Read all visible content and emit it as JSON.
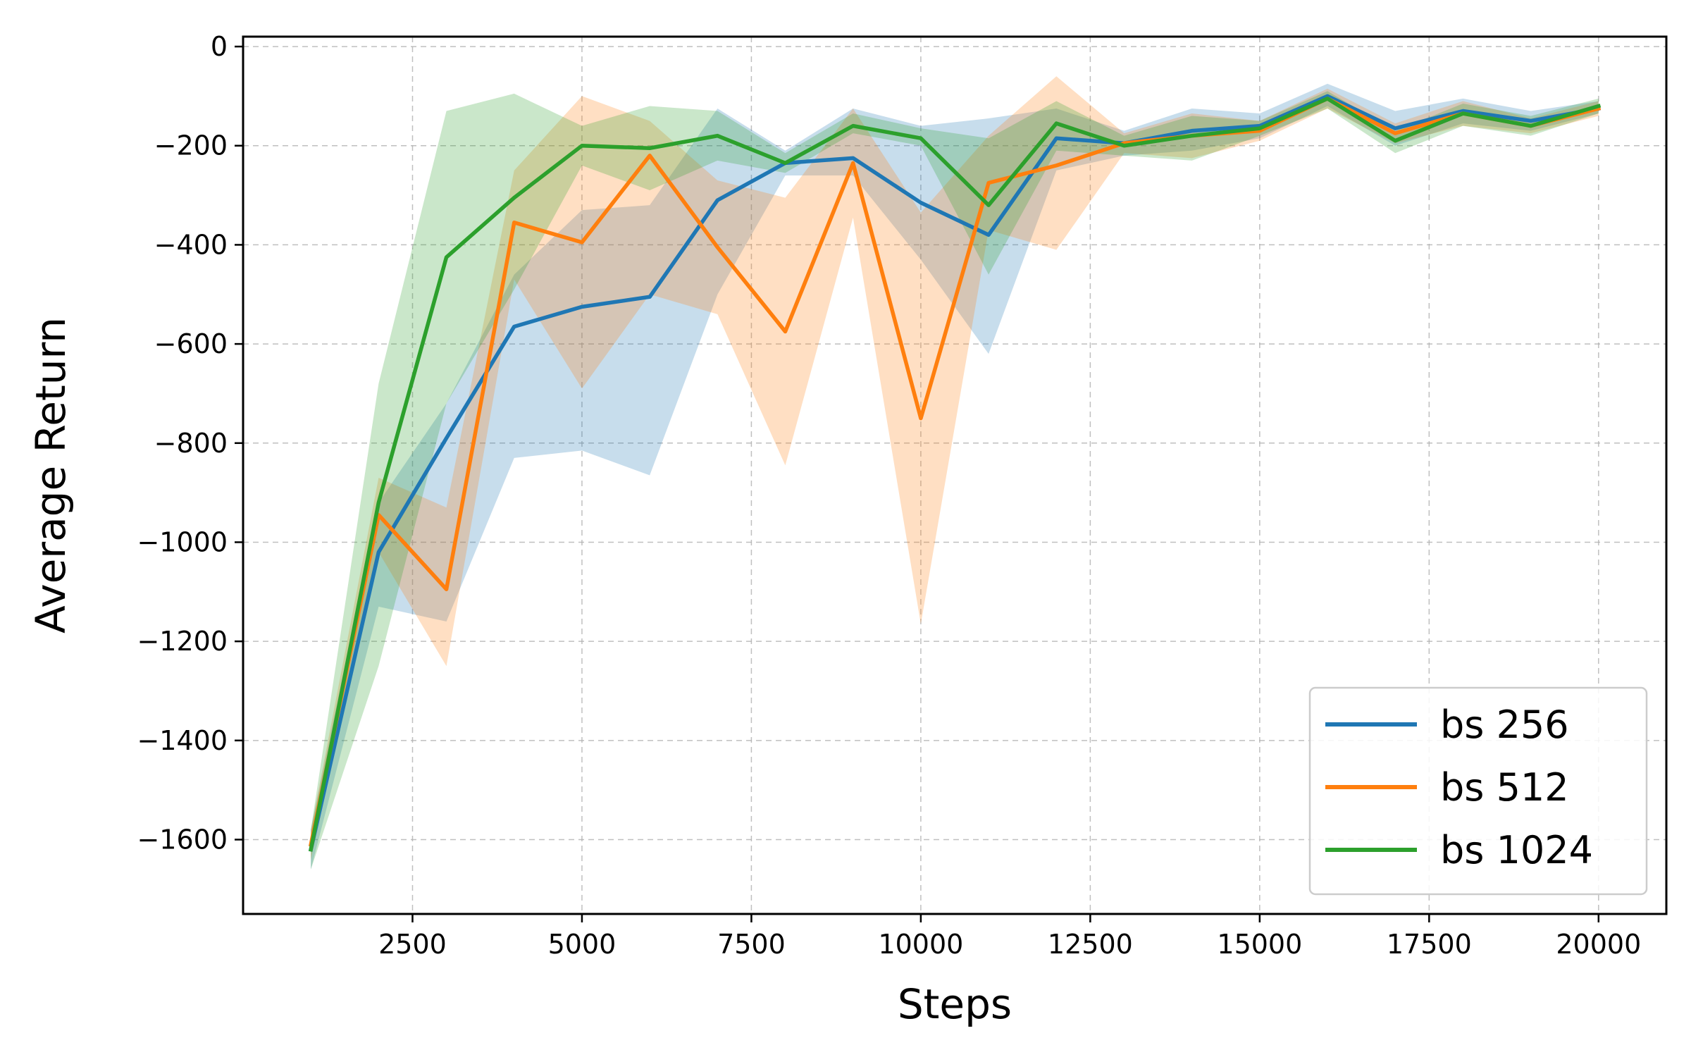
{
  "chart_data": {
    "type": "line",
    "xlabel": "Steps",
    "ylabel": "Average Return",
    "xlim": [
      0,
      21000
    ],
    "ylim": [
      -1750,
      20
    ],
    "xticks": [
      2500,
      5000,
      7500,
      10000,
      12500,
      15000,
      17500,
      20000
    ],
    "xtick_labels": [
      "2500",
      "5000",
      "7500",
      "10000",
      "12500",
      "15000",
      "17500",
      "20000"
    ],
    "yticks": [
      0,
      -200,
      -400,
      -600,
      -800,
      -1000,
      -1200,
      -1400,
      -1600
    ],
    "ytick_labels": [
      "0",
      "−200",
      "−400",
      "−600",
      "−800",
      "−1000",
      "−1200",
      "−1400",
      "−1600"
    ],
    "grid": true,
    "legend_position": "bottom-right",
    "x": [
      1000,
      2000,
      3000,
      4000,
      5000,
      6000,
      7000,
      8000,
      9000,
      10000,
      11000,
      12000,
      13000,
      14000,
      15000,
      16000,
      17000,
      18000,
      19000,
      20000
    ],
    "series": [
      {
        "name": "bs 256",
        "color": "#1f77b4",
        "values": [
          -1620,
          -1020,
          -790,
          -565,
          -525,
          -505,
          -310,
          -235,
          -225,
          -315,
          -380,
          -185,
          -195,
          -170,
          -160,
          -100,
          -165,
          -130,
          -150,
          -125
        ],
        "lower": [
          -1660,
          -1130,
          -1160,
          -830,
          -815,
          -865,
          -500,
          -260,
          -260,
          -430,
          -620,
          -250,
          -220,
          -210,
          -185,
          -120,
          -200,
          -155,
          -170,
          -135
        ],
        "upper": [
          -1580,
          -920,
          -720,
          -460,
          -330,
          -320,
          -125,
          -210,
          -125,
          -160,
          -145,
          -125,
          -170,
          -125,
          -135,
          -75,
          -130,
          -105,
          -130,
          -110
        ]
      },
      {
        "name": "bs 512",
        "color": "#ff7f0e",
        "values": [
          -1610,
          -945,
          -1095,
          -355,
          -395,
          -220,
          -405,
          -575,
          -235,
          -750,
          -275,
          -240,
          -195,
          -180,
          -170,
          -105,
          -175,
          -135,
          -160,
          -125
        ],
        "lower": [
          -1640,
          -1020,
          -1250,
          -470,
          -690,
          -500,
          -540,
          -845,
          -345,
          -1165,
          -370,
          -410,
          -215,
          -225,
          -190,
          -125,
          -195,
          -160,
          -175,
          -140
        ],
        "upper": [
          -1580,
          -870,
          -930,
          -250,
          -100,
          -150,
          -270,
          -305,
          -125,
          -335,
          -180,
          -60,
          -175,
          -135,
          -150,
          -85,
          -155,
          -110,
          -145,
          -110
        ]
      },
      {
        "name": "bs 1024",
        "color": "#2ca02c",
        "values": [
          -1620,
          -920,
          -425,
          -305,
          -200,
          -205,
          -180,
          -235,
          -160,
          -185,
          -320,
          -155,
          -200,
          -180,
          -165,
          -105,
          -190,
          -135,
          -160,
          -120
        ],
        "lower": [
          -1660,
          -1250,
          -720,
          -490,
          -240,
          -290,
          -230,
          -255,
          -175,
          -200,
          -460,
          -210,
          -220,
          -230,
          -180,
          -125,
          -215,
          -160,
          -180,
          -135
        ],
        "upper": [
          -1580,
          -680,
          -130,
          -95,
          -160,
          -120,
          -130,
          -215,
          -135,
          -165,
          -185,
          -110,
          -180,
          -140,
          -150,
          -90,
          -170,
          -115,
          -140,
          -105
        ]
      }
    ]
  }
}
